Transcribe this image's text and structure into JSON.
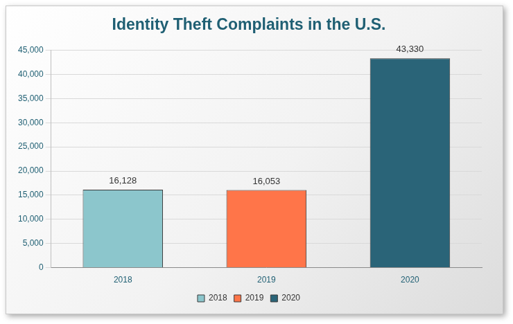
{
  "chart_data": {
    "type": "bar",
    "title": "Identity Theft Complaints in the U.S.",
    "categories": [
      "2018",
      "2019",
      "2020"
    ],
    "values": [
      16128,
      16053,
      43330
    ],
    "value_labels": [
      "16,128",
      "16,053",
      "43,330"
    ],
    "colors": [
      "#8cc6cc",
      "#ff7549",
      "#2a6478"
    ],
    "ylim": [
      0,
      45000
    ],
    "yticks": [
      0,
      {
        "value": 5000,
        "label": "5,000"
      },
      {
        "value": 10000,
        "label": "10,000"
      },
      {
        "value": 15000,
        "label": "15,000"
      },
      {
        "value": 20000,
        "label": "20,000"
      },
      {
        "value": 25000,
        "label": "25,000"
      },
      {
        "value": 30000,
        "label": "30,000"
      },
      {
        "value": 35000,
        "label": "35,000"
      },
      {
        "value": 40000,
        "label": "40,000"
      },
      {
        "value": 45000,
        "label": "45,000"
      }
    ],
    "grid": true,
    "legend": "bottom",
    "data_labels": true
  }
}
